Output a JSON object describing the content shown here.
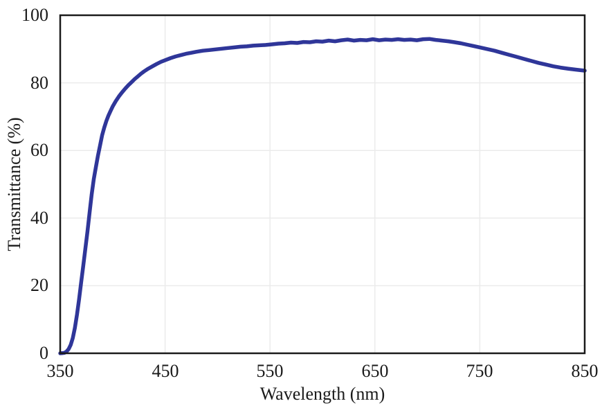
{
  "chart_data": {
    "type": "line",
    "title": "",
    "xlabel": "Wavelength (nm)",
    "ylabel": "Transmittance (%)",
    "xlim": [
      350,
      850
    ],
    "ylim": [
      0,
      100
    ],
    "x_ticks": [
      350,
      450,
      550,
      650,
      750,
      850
    ],
    "y_ticks": [
      0,
      20,
      40,
      60,
      80,
      100
    ],
    "x_tick_labels": [
      "350",
      "450",
      "550",
      "650",
      "750",
      "850"
    ],
    "y_tick_labels": [
      "0",
      "20",
      "40",
      "60",
      "80",
      "100"
    ],
    "grid": true,
    "grid_x": [
      450,
      550,
      650,
      750
    ],
    "grid_y": [
      20,
      40,
      60,
      80
    ],
    "legend": "none",
    "line_color": "#2f3699",
    "grid_color": "#ebebeb",
    "axis_color": "#1a1a1a",
    "series": [
      {
        "name": "Transmittance",
        "points": [
          [
            350,
            0
          ],
          [
            352,
            0.05
          ],
          [
            354,
            0.15
          ],
          [
            356,
            0.5
          ],
          [
            358,
            1.2
          ],
          [
            360,
            2.5
          ],
          [
            362,
            4.5
          ],
          [
            364,
            7.5
          ],
          [
            366,
            11.5
          ],
          [
            368,
            16
          ],
          [
            370,
            21
          ],
          [
            372,
            26
          ],
          [
            374,
            31
          ],
          [
            376,
            36
          ],
          [
            378,
            41.5
          ],
          [
            380,
            47
          ],
          [
            382,
            51.5
          ],
          [
            384,
            55
          ],
          [
            386,
            58.5
          ],
          [
            388,
            61.5
          ],
          [
            390,
            64.5
          ],
          [
            392,
            66.8
          ],
          [
            394,
            68.7
          ],
          [
            396,
            70.3
          ],
          [
            398,
            71.7
          ],
          [
            400,
            73
          ],
          [
            403,
            74.6
          ],
          [
            406,
            76
          ],
          [
            409,
            77.2
          ],
          [
            412,
            78.3
          ],
          [
            415,
            79.3
          ],
          [
            418,
            80.2
          ],
          [
            421,
            81.1
          ],
          [
            424,
            81.9
          ],
          [
            427,
            82.7
          ],
          [
            430,
            83.4
          ],
          [
            434,
            84.2
          ],
          [
            438,
            84.9
          ],
          [
            442,
            85.6
          ],
          [
            446,
            86.2
          ],
          [
            450,
            86.7
          ],
          [
            455,
            87.3
          ],
          [
            460,
            87.8
          ],
          [
            465,
            88.2
          ],
          [
            470,
            88.6
          ],
          [
            475,
            88.9
          ],
          [
            480,
            89.2
          ],
          [
            486,
            89.5
          ],
          [
            492,
            89.7
          ],
          [
            498,
            89.9
          ],
          [
            504,
            90.1
          ],
          [
            510,
            90.3
          ],
          [
            516,
            90.5
          ],
          [
            522,
            90.7
          ],
          [
            528,
            90.8
          ],
          [
            534,
            91.0
          ],
          [
            540,
            91.1
          ],
          [
            546,
            91.2
          ],
          [
            552,
            91.4
          ],
          [
            558,
            91.6
          ],
          [
            564,
            91.7
          ],
          [
            570,
            91.9
          ],
          [
            576,
            91.8
          ],
          [
            582,
            92.1
          ],
          [
            588,
            92.0
          ],
          [
            594,
            92.3
          ],
          [
            600,
            92.2
          ],
          [
            606,
            92.5
          ],
          [
            612,
            92.3
          ],
          [
            618,
            92.6
          ],
          [
            624,
            92.8
          ],
          [
            630,
            92.5
          ],
          [
            636,
            92.7
          ],
          [
            642,
            92.6
          ],
          [
            648,
            92.9
          ],
          [
            654,
            92.6
          ],
          [
            660,
            92.8
          ],
          [
            666,
            92.7
          ],
          [
            672,
            92.9
          ],
          [
            678,
            92.7
          ],
          [
            684,
            92.8
          ],
          [
            690,
            92.6
          ],
          [
            696,
            92.9
          ],
          [
            702,
            93.0
          ],
          [
            708,
            92.7
          ],
          [
            714,
            92.5
          ],
          [
            720,
            92.3
          ],
          [
            726,
            92.0
          ],
          [
            732,
            91.7
          ],
          [
            738,
            91.3
          ],
          [
            744,
            90.9
          ],
          [
            750,
            90.5
          ],
          [
            757,
            90.0
          ],
          [
            764,
            89.5
          ],
          [
            771,
            88.9
          ],
          [
            778,
            88.3
          ],
          [
            785,
            87.7
          ],
          [
            792,
            87.1
          ],
          [
            799,
            86.5
          ],
          [
            806,
            85.9
          ],
          [
            813,
            85.4
          ],
          [
            820,
            84.9
          ],
          [
            827,
            84.5
          ],
          [
            834,
            84.2
          ],
          [
            842,
            83.9
          ],
          [
            850,
            83.6
          ]
        ]
      }
    ]
  }
}
